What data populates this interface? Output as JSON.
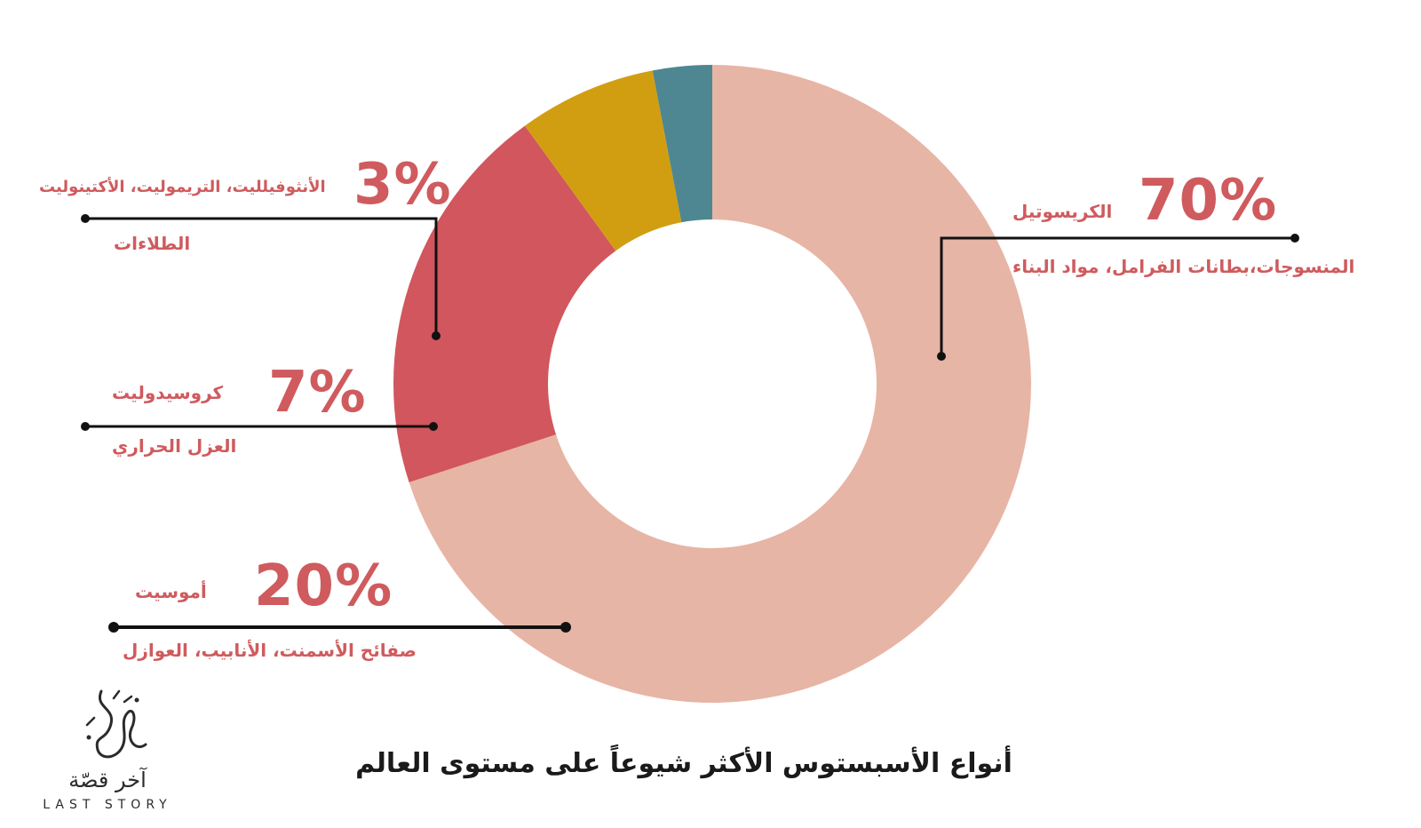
{
  "chart_data": {
    "type": "pie",
    "title": "أنواع الأسبستوس الأكثر شيوعاً على مستوى العالم",
    "slices": [
      {
        "label": "الكريسوتيل",
        "value": 70,
        "display": "70%",
        "use": "المنسوجات،بطانات الفرامل، مواد البناء",
        "color": "#e7b5a5"
      },
      {
        "label": "أموسيت",
        "value": 20,
        "display": "20%",
        "use": "صفائح الأسمنت، الأنابيب، العوازل",
        "color": "#d2565d"
      },
      {
        "label": "كروسيدوليت",
        "value": 7,
        "display": "7%",
        "use": "العزل الحراري",
        "color": "#d19e12"
      },
      {
        "label": "الأنثوفيلليت، التريموليت، الأكتينوليت",
        "value": 3,
        "display": "3%",
        "use": "الطلاءات",
        "color": "#4e8791"
      }
    ]
  },
  "logo": {
    "arabic": "آخر قصّة",
    "english": "LAST STORY"
  },
  "colors": {
    "label": "#cf5b5e",
    "leader": "#111111",
    "title": "#1a1a1a"
  }
}
